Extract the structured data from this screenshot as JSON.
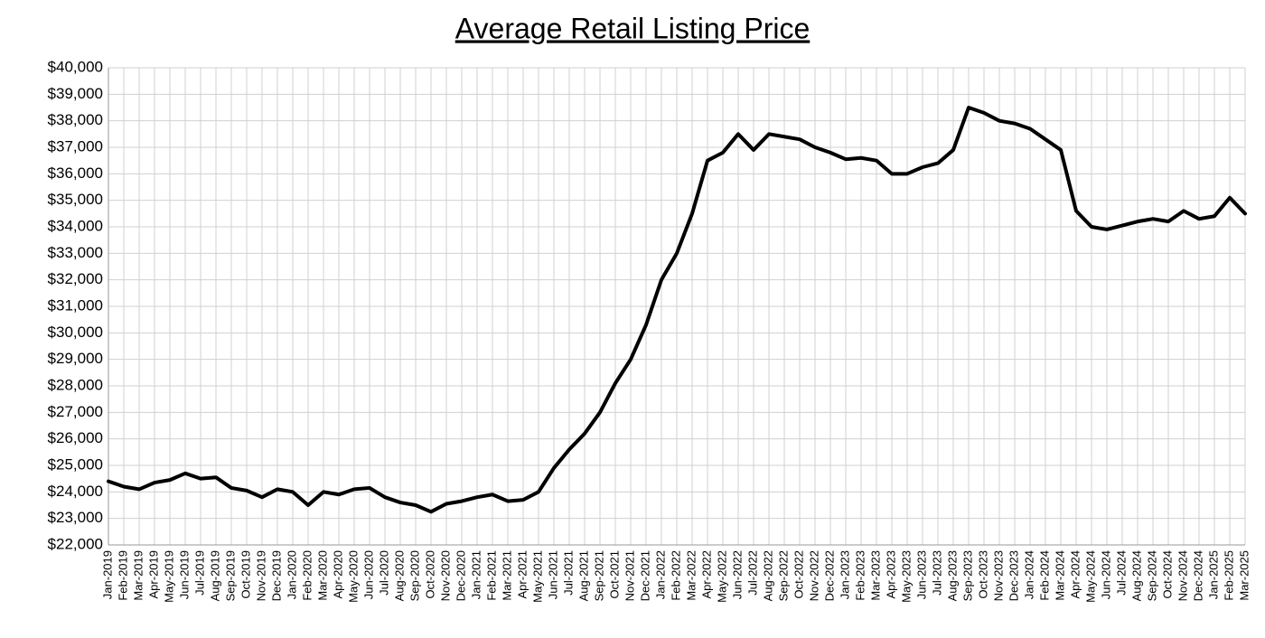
{
  "chart_data": {
    "type": "line",
    "title": "Average Retail Listing Price",
    "categories": [
      "Jan-2019",
      "Feb-2019",
      "Mar-2019",
      "Apr-2019",
      "May-2019",
      "Jun-2019",
      "Jul-2019",
      "Aug-2019",
      "Sep-2019",
      "Oct-2019",
      "Nov-2019",
      "Dec-2019",
      "Jan-2020",
      "Feb-2020",
      "Mar-2020",
      "Apr-2020",
      "May-2020",
      "Jun-2020",
      "Jul-2020",
      "Aug-2020",
      "Sep-2020",
      "Oct-2020",
      "Nov-2020",
      "Dec-2020",
      "Jan-2021",
      "Feb-2021",
      "Mar-2021",
      "Apr-2021",
      "May-2021",
      "Jun-2021",
      "Jul-2021",
      "Aug-2021",
      "Sep-2021",
      "Oct-2021",
      "Nov-2021",
      "Dec-2021",
      "Jan-2022",
      "Feb-2022",
      "Mar-2022",
      "Apr-2022",
      "May-2022",
      "Jun-2022",
      "Jul-2022",
      "Aug-2022",
      "Sep-2022",
      "Oct-2022",
      "Nov-2022",
      "Dec-2022",
      "Jan-2023",
      "Feb-2023",
      "Mar-2023",
      "Apr-2023",
      "May-2023",
      "Jun-2023",
      "Jul-2023",
      "Aug-2023",
      "Sep-2023",
      "Oct-2023",
      "Nov-2023",
      "Dec-2023",
      "Jan-2024",
      "Feb-2024",
      "Mar-2024",
      "Apr-2024",
      "May-2024",
      "Jun-2024",
      "Jul-2024",
      "Aug-2024",
      "Sep-2024",
      "Oct-2024",
      "Nov-2024",
      "Dec-2024",
      "Jan-2025",
      "Feb-2025",
      "Mar-2025"
    ],
    "values": [
      24400,
      24200,
      24100,
      24350,
      24450,
      24700,
      24500,
      24550,
      24150,
      24050,
      23800,
      24100,
      24000,
      23500,
      24000,
      23900,
      24100,
      24150,
      23800,
      23600,
      23500,
      23250,
      23550,
      23650,
      23800,
      23900,
      23650,
      23700,
      24000,
      24900,
      25600,
      26200,
      27000,
      28100,
      29000,
      30300,
      32000,
      33000,
      34500,
      36500,
      36800,
      37500,
      36900,
      37500,
      37400,
      37300,
      37000,
      36800,
      36550,
      36600,
      36500,
      36000,
      36000,
      36250,
      36400,
      36900,
      38500,
      38300,
      38000,
      37900,
      37700,
      37300,
      36900,
      34600,
      34000,
      33900,
      34050,
      34200,
      34300,
      34200,
      34600,
      34300,
      34400,
      35100,
      34500
    ],
    "color": "#000000",
    "ylim": [
      22000,
      40000
    ],
    "yticks": [
      {
        "value": 22000,
        "label": "$22,000"
      },
      {
        "value": 23000,
        "label": "$23,000"
      },
      {
        "value": 24000,
        "label": "$24,000"
      },
      {
        "value": 25000,
        "label": "$25,000"
      },
      {
        "value": 26000,
        "label": "$26,000"
      },
      {
        "value": 27000,
        "label": "$27,000"
      },
      {
        "value": 28000,
        "label": "$28,000"
      },
      {
        "value": 29000,
        "label": "$29,000"
      },
      {
        "value": 30000,
        "label": "$30,000"
      },
      {
        "value": 31000,
        "label": "$31,000"
      },
      {
        "value": 32000,
        "label": "$32,000"
      },
      {
        "value": 33000,
        "label": "$33,000"
      },
      {
        "value": 34000,
        "label": "$34,000"
      },
      {
        "value": 35000,
        "label": "$35,000"
      },
      {
        "value": 36000,
        "label": "$36,000"
      },
      {
        "value": 37000,
        "label": "$37,000"
      },
      {
        "value": 38000,
        "label": "$38,000"
      },
      {
        "value": 39000,
        "label": "$39,000"
      },
      {
        "value": 40000,
        "label": "$40,000"
      }
    ],
    "grid": true
  }
}
